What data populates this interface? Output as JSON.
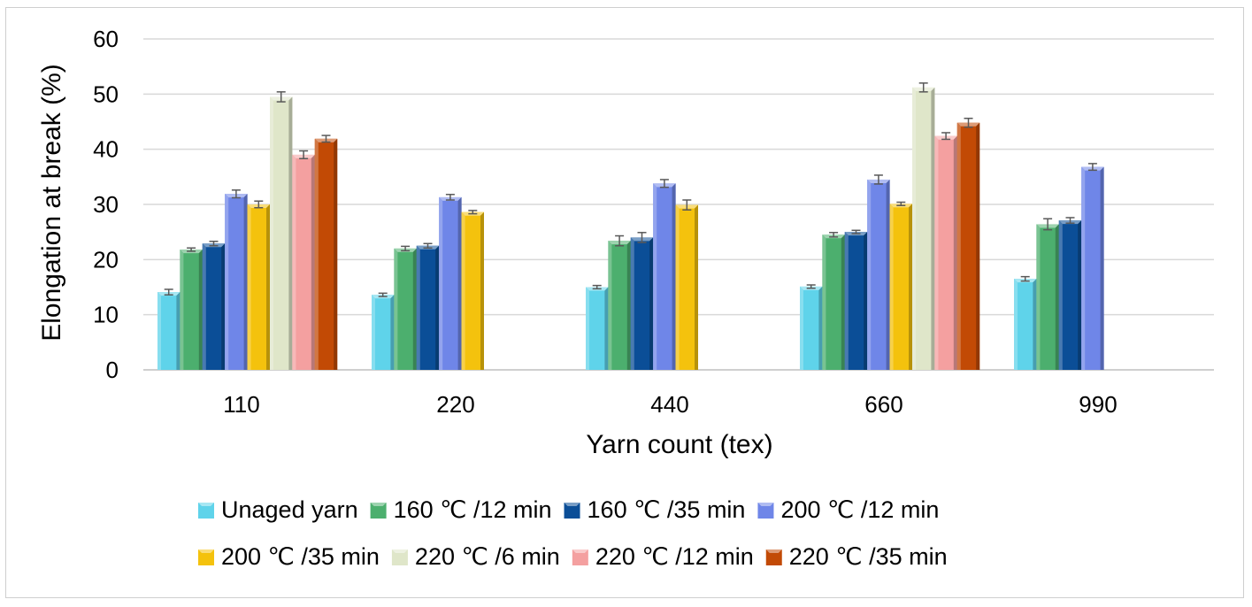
{
  "chart_data": {
    "type": "bar",
    "title": "",
    "xlabel": "Yarn count (tex)",
    "ylabel": "Elongation at break (%)",
    "ylim": [
      0,
      60
    ],
    "yticks": [
      "0",
      "10",
      "20",
      "30",
      "40",
      "50",
      "60"
    ],
    "grid": true,
    "legend_position": "bottom",
    "categories": [
      "110",
      "220",
      "440",
      "660",
      "990"
    ],
    "series": [
      {
        "name": "Unaged yarn",
        "color": "#5fd3ea",
        "values": [
          14.1,
          13.6,
          15.0,
          15.1,
          16.5
        ],
        "errors": [
          0.5,
          0.3,
          0.3,
          0.3,
          0.4
        ]
      },
      {
        "name": "160 ℃ /12 min",
        "color": "#4caf6e",
        "values": [
          21.8,
          22.0,
          23.4,
          24.5,
          26.4
        ],
        "errors": [
          0.3,
          0.4,
          0.9,
          0.4,
          1.0
        ]
      },
      {
        "name": "160 ℃ /35 min",
        "color": "#0b4e97",
        "values": [
          22.9,
          22.5,
          24.0,
          25.0,
          27.1
        ],
        "errors": [
          0.4,
          0.4,
          0.9,
          0.3,
          0.5
        ]
      },
      {
        "name": "200 ℃ /12 min",
        "color": "#6f86e8",
        "values": [
          31.9,
          31.3,
          33.8,
          34.5,
          36.8
        ],
        "errors": [
          0.7,
          0.5,
          0.7,
          0.8,
          0.6
        ]
      },
      {
        "name": "200 ℃ /35 min",
        "color": "#f4c20d",
        "values": [
          30.0,
          28.6,
          29.9,
          30.1,
          null
        ],
        "errors": [
          0.6,
          0.3,
          0.9,
          0.3,
          null
        ]
      },
      {
        "name": "220 ℃ /6 min",
        "color": "#dfe6c9",
        "values": [
          49.5,
          null,
          null,
          51.2,
          null
        ],
        "errors": [
          0.9,
          null,
          null,
          0.8,
          null
        ]
      },
      {
        "name": "220 ℃ /12 min",
        "color": "#f4a0a0",
        "values": [
          39.0,
          null,
          null,
          42.4,
          null
        ],
        "errors": [
          0.7,
          null,
          null,
          0.6,
          null
        ]
      },
      {
        "name": "220 ℃ /35 min",
        "color": "#c24a05",
        "values": [
          41.9,
          null,
          null,
          44.8,
          null
        ],
        "errors": [
          0.6,
          null,
          null,
          0.8,
          null
        ]
      }
    ]
  }
}
